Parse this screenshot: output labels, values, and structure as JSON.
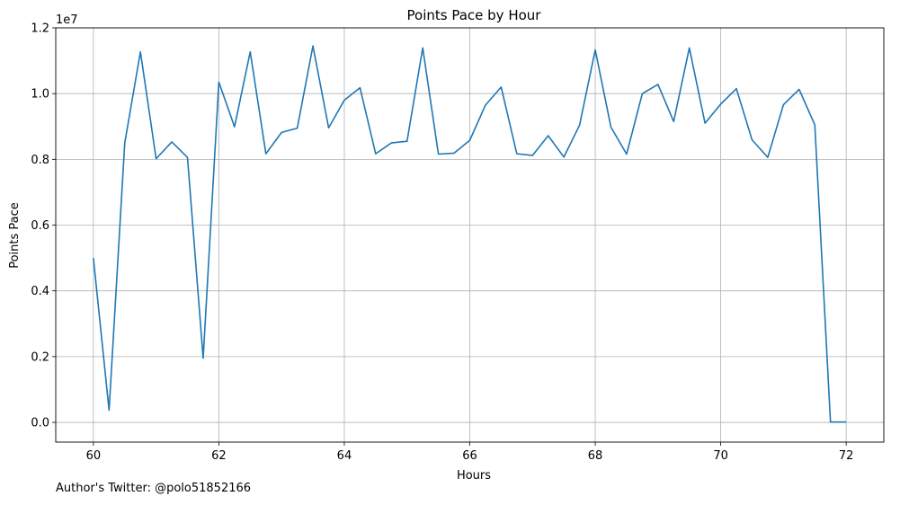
{
  "chart_data": {
    "type": "line",
    "title": "Points Pace by Hour",
    "xlabel": "Hours",
    "ylabel": "Points Pace",
    "y_offset_label": "1e7",
    "xlim": [
      59.4,
      72.6
    ],
    "ylim": [
      -600000,
      12000000
    ],
    "x_ticks": [
      60,
      62,
      64,
      66,
      68,
      70,
      72
    ],
    "x_tick_labels": [
      "60",
      "62",
      "64",
      "66",
      "68",
      "70",
      "72"
    ],
    "y_ticks": [
      0,
      2000000,
      4000000,
      6000000,
      8000000,
      10000000,
      12000000
    ],
    "y_tick_labels": [
      "0.0",
      "0.2",
      "0.4",
      "0.6",
      "0.8",
      "1.0",
      "1.2"
    ],
    "grid": true,
    "line_color": "#1f77b4",
    "series": [
      {
        "x": [
          60,
          60.25,
          60.5,
          60.75,
          61,
          61.25,
          61.5,
          61.75,
          62,
          62.25,
          62.5,
          62.75,
          63,
          63.25,
          63.5,
          63.75,
          64,
          64.25,
          64.5,
          64.75,
          65,
          65.25,
          65.5,
          65.75,
          66,
          66.25,
          66.5,
          66.75,
          67,
          67.25,
          67.5,
          67.75,
          68,
          68.25,
          68.5,
          68.75,
          69,
          69.25,
          69.5,
          69.75,
          70,
          70.25,
          70.5,
          70.75,
          71,
          71.25,
          71.5,
          71.75,
          72
        ],
        "values": [
          5000000,
          370000,
          8500000,
          11270000,
          8020000,
          8530000,
          8060000,
          1950000,
          10350000,
          8990000,
          11270000,
          8170000,
          8820000,
          8950000,
          11450000,
          8960000,
          9800000,
          10180000,
          8170000,
          8500000,
          8550000,
          11390000,
          8160000,
          8190000,
          8580000,
          9650000,
          10200000,
          8170000,
          8120000,
          8720000,
          8070000,
          9040000,
          11330000,
          8980000,
          8160000,
          10000000,
          10280000,
          9150000,
          11390000,
          9100000,
          9680000,
          10150000,
          8590000,
          8060000,
          9660000,
          10130000,
          9050000,
          10000,
          10000
        ]
      }
    ]
  },
  "footer": {
    "text": "Author's Twitter: @polo51852166"
  }
}
